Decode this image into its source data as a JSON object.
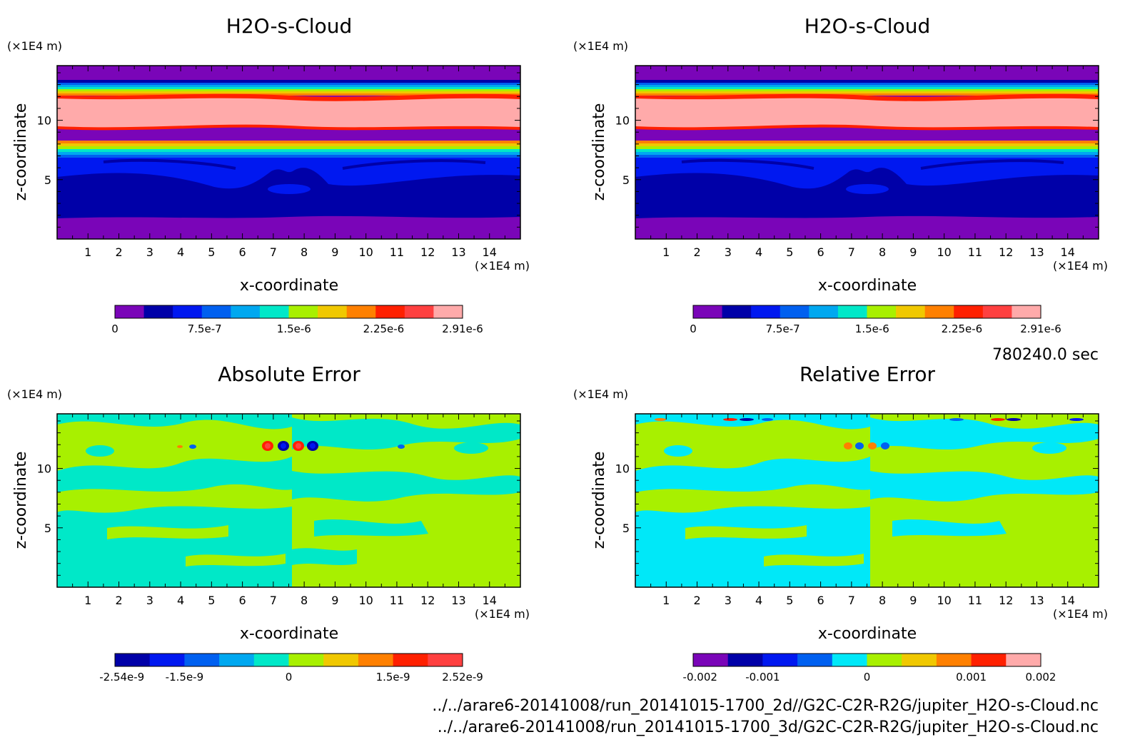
{
  "time_label": "780240.0 sec",
  "footer": {
    "file_2d": "../../arare6-20141008/run_20141015-1700_2d//G2C-C2R-R2G/jupiter_H2O-s-Cloud.nc",
    "file_3d": "../../arare6-20141008/run_20141015-1700_3d/G2C-C2R-R2G/jupiter_H2O-s-Cloud.nc"
  },
  "chart_data": [
    {
      "type": "heatmap",
      "title": "H2O-s-Cloud",
      "xlabel": "x-coordinate",
      "ylabel": "z-coordinate",
      "x_unit": "(×1E4 m)",
      "y_unit": "(×1E4 m)",
      "xlim": [
        0,
        15
      ],
      "ylim": [
        0,
        14.6
      ],
      "x_ticks": [
        1,
        2,
        3,
        4,
        5,
        6,
        7,
        8,
        9,
        10,
        11,
        12,
        13,
        14
      ],
      "y_ticks": [
        5,
        10
      ],
      "colorbar": {
        "labels": [
          "0",
          "7.5e-7",
          "1.5e-6",
          "2.25e-6",
          "2.91e-6"
        ],
        "colors": [
          "#7a05b8",
          "#0000a8",
          "#0018f0",
          "#0060f0",
          "#00a8f0",
          "#00e8c8",
          "#a8f000",
          "#f0c800",
          "#ff8000",
          "#ff2000",
          "#ff4040",
          "#ffaaaa"
        ]
      }
    },
    {
      "type": "heatmap",
      "title": "H2O-s-Cloud",
      "xlabel": "x-coordinate",
      "ylabel": "z-coordinate",
      "x_unit": "(×1E4 m)",
      "y_unit": "(×1E4 m)",
      "xlim": [
        0,
        15
      ],
      "ylim": [
        0,
        14.6
      ],
      "x_ticks": [
        1,
        2,
        3,
        4,
        5,
        6,
        7,
        8,
        9,
        10,
        11,
        12,
        13,
        14
      ],
      "y_ticks": [
        5,
        10
      ],
      "colorbar": {
        "labels": [
          "0",
          "7.5e-7",
          "1.5e-6",
          "2.25e-6",
          "2.91e-6"
        ],
        "colors": [
          "#7a05b8",
          "#0000a8",
          "#0018f0",
          "#0060f0",
          "#00a8f0",
          "#00e8c8",
          "#a8f000",
          "#f0c800",
          "#ff8000",
          "#ff2000",
          "#ff4040",
          "#ffaaaa"
        ]
      }
    },
    {
      "type": "heatmap",
      "title": "Absolute Error",
      "xlabel": "x-coordinate",
      "ylabel": "z-coordinate",
      "x_unit": "(×1E4 m)",
      "y_unit": "(×1E4 m)",
      "xlim": [
        0,
        15
      ],
      "ylim": [
        0,
        14.6
      ],
      "x_ticks": [
        1,
        2,
        3,
        4,
        5,
        6,
        7,
        8,
        9,
        10,
        11,
        12,
        13,
        14
      ],
      "y_ticks": [
        5,
        10
      ],
      "colorbar": {
        "labels": [
          "-2.54e-9",
          "-1.5e-9",
          "0",
          "1.5e-9",
          "2.52e-9"
        ],
        "colors": [
          "#0000a8",
          "#0018f0",
          "#0060f0",
          "#00a8f0",
          "#00e8c8",
          "#a8f000",
          "#f0c800",
          "#ff8000",
          "#ff2000",
          "#ff4040"
        ]
      }
    },
    {
      "type": "heatmap",
      "title": "Relative Error",
      "xlabel": "x-coordinate",
      "ylabel": "z-coordinate",
      "x_unit": "(×1E4 m)",
      "y_unit": "(×1E4 m)",
      "xlim": [
        0,
        15
      ],
      "ylim": [
        0,
        14.6
      ],
      "x_ticks": [
        1,
        2,
        3,
        4,
        5,
        6,
        7,
        8,
        9,
        10,
        11,
        12,
        13,
        14
      ],
      "y_ticks": [
        5,
        10
      ],
      "colorbar": {
        "labels": [
          "-0.002",
          "-0.001",
          "0",
          "0.001",
          "0.002"
        ],
        "colors": [
          "#7a05b8",
          "#0000a8",
          "#0018f0",
          "#0060f0",
          "#00e8f8",
          "#a8f000",
          "#f0c800",
          "#ff8000",
          "#ff2000",
          "#ffaaaa"
        ]
      }
    }
  ]
}
